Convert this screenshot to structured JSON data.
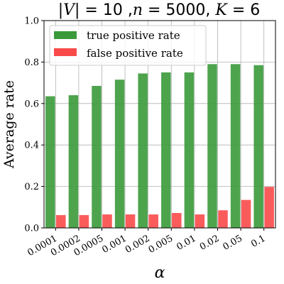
{
  "chart_data": {
    "type": "bar",
    "title_parts": {
      "v": "|V|",
      "v_eq": " = 10 ,",
      "n": "n",
      "n_eq": " = 5000, ",
      "k": "K",
      "k_eq": " = 6"
    },
    "xlabel": "α",
    "ylabel": "Average rate",
    "categories": [
      "0.0001",
      "0.0002",
      "0.0005",
      "0.001",
      "0.002",
      "0.005",
      "0.01",
      "0.02",
      "0.05",
      "0.1"
    ],
    "ylim": [
      0,
      1.0
    ],
    "yticks": [
      "0.0",
      "0.2",
      "0.4",
      "0.6",
      "0.8",
      "1.0"
    ],
    "grid": true,
    "legend_position": "top-left",
    "series": [
      {
        "name": "true positive rate",
        "color": "#3a9a3a",
        "values": [
          0.635,
          0.64,
          0.685,
          0.715,
          0.745,
          0.75,
          0.75,
          0.79,
          0.79,
          0.785
        ]
      },
      {
        "name": "false positive rate",
        "color": "#f94a4a",
        "values": [
          0.062,
          0.062,
          0.065,
          0.065,
          0.065,
          0.072,
          0.065,
          0.085,
          0.135,
          0.198
        ]
      }
    ]
  }
}
